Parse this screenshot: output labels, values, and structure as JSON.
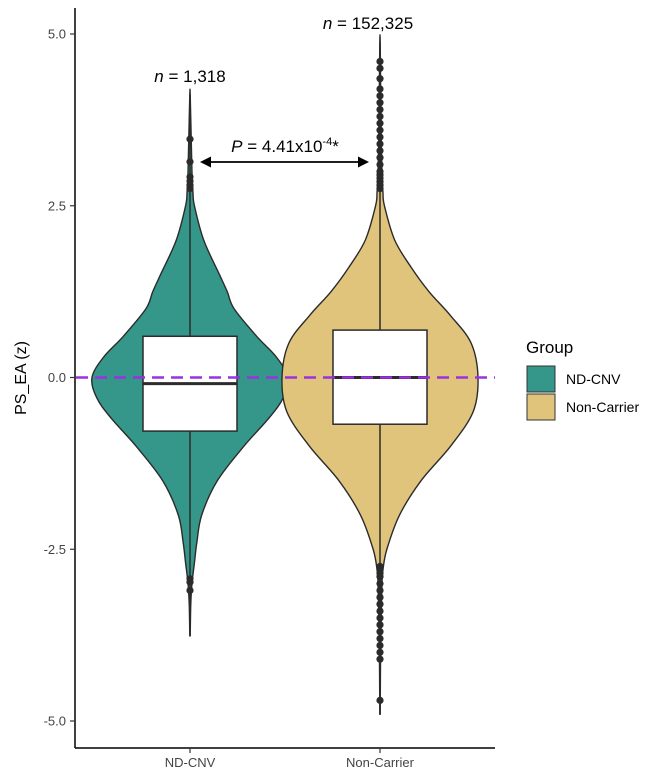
{
  "chart_data": {
    "type": "violin",
    "ylabel": "PS_EA (z)",
    "xlabel": "",
    "ylim": [
      -5.3,
      5.35
    ],
    "yticks": [
      5.0,
      2.5,
      0.0,
      -2.5,
      -5.0
    ],
    "ytick_labels": [
      "5.0",
      "2.5",
      "0.0",
      "-2.5",
      "-5.0"
    ],
    "categories": [
      "ND-CNV",
      "Non-Carrier"
    ],
    "reference_line": {
      "y": 0.0,
      "color": "#9b30e0",
      "style": "dashed"
    },
    "legend": {
      "title": "Group",
      "position": "right",
      "entries": [
        {
          "label": "ND-CNV",
          "color": "#35968a"
        },
        {
          "label": "Non-Carrier",
          "color": "#e0c47c"
        }
      ]
    },
    "series": [
      {
        "name": "ND-CNV",
        "color": "#35968a",
        "n_prefix": "n",
        "n_value": "= 1,318",
        "box": {
          "q1": -0.78,
          "median": -0.09,
          "q3": 0.6
        },
        "whisker": {
          "low": -3.76,
          "high": 4.12
        },
        "outliers": [
          3.47,
          3.14,
          2.92,
          2.86,
          2.8,
          2.75,
          -2.93,
          -2.98,
          -3.1
        ],
        "violin_profile": [
          [
            -3.76,
            0.002
          ],
          [
            -3.3,
            0.008
          ],
          [
            -3.0,
            0.02
          ],
          [
            -2.7,
            0.045
          ],
          [
            -2.4,
            0.07
          ],
          [
            -2.0,
            0.12
          ],
          [
            -1.5,
            0.28
          ],
          [
            -1.0,
            0.55
          ],
          [
            -0.6,
            0.8
          ],
          [
            -0.3,
            0.95
          ],
          [
            0.0,
            1.0
          ],
          [
            0.3,
            0.88
          ],
          [
            0.6,
            0.68
          ],
          [
            1.0,
            0.45
          ],
          [
            1.25,
            0.38
          ],
          [
            1.5,
            0.3
          ],
          [
            2.0,
            0.14
          ],
          [
            2.5,
            0.045
          ],
          [
            2.7,
            0.03
          ],
          [
            3.0,
            0.02
          ],
          [
            3.5,
            0.012
          ],
          [
            4.12,
            0.002
          ]
        ]
      },
      {
        "name": "Non-Carrier",
        "color": "#e0c47c",
        "n_prefix": "n",
        "n_value": "= 152,325",
        "box": {
          "q1": -0.68,
          "median": 0.0,
          "q3": 0.69
        },
        "whisker": {
          "low": -4.9,
          "high": 4.88
        },
        "outliers": [
          4.6,
          4.5,
          4.35,
          4.2,
          4.1,
          4.0,
          3.9,
          3.8,
          3.7,
          3.6,
          3.5,
          3.4,
          3.3,
          3.2,
          3.1,
          3.0,
          2.95,
          2.9,
          2.85,
          2.8,
          2.75,
          -2.75,
          -2.8,
          -2.85,
          -2.9,
          -3.0,
          -3.1,
          -3.2,
          -3.3,
          -3.4,
          -3.5,
          -3.6,
          -3.7,
          -3.8,
          -3.9,
          -4.0,
          -4.1,
          -4.7
        ],
        "violin_profile": [
          [
            -4.9,
            0.002
          ],
          [
            -4.0,
            0.006
          ],
          [
            -3.5,
            0.012
          ],
          [
            -3.0,
            0.02
          ],
          [
            -2.8,
            0.03
          ],
          [
            -2.5,
            0.07
          ],
          [
            -2.0,
            0.2
          ],
          [
            -1.5,
            0.42
          ],
          [
            -1.0,
            0.72
          ],
          [
            -0.5,
            0.95
          ],
          [
            0.0,
            1.0
          ],
          [
            0.5,
            0.93
          ],
          [
            0.9,
            0.72
          ],
          [
            1.25,
            0.5
          ],
          [
            1.6,
            0.32
          ],
          [
            2.0,
            0.15
          ],
          [
            2.5,
            0.045
          ],
          [
            2.7,
            0.03
          ],
          [
            3.0,
            0.02
          ],
          [
            3.5,
            0.012
          ],
          [
            4.0,
            0.008
          ],
          [
            4.88,
            0.002
          ]
        ]
      }
    ],
    "comparison": {
      "p_symbol": "P",
      "p_text": "= 4.41x10",
      "p_exponent": "-4",
      "p_suffix": "*"
    }
  }
}
